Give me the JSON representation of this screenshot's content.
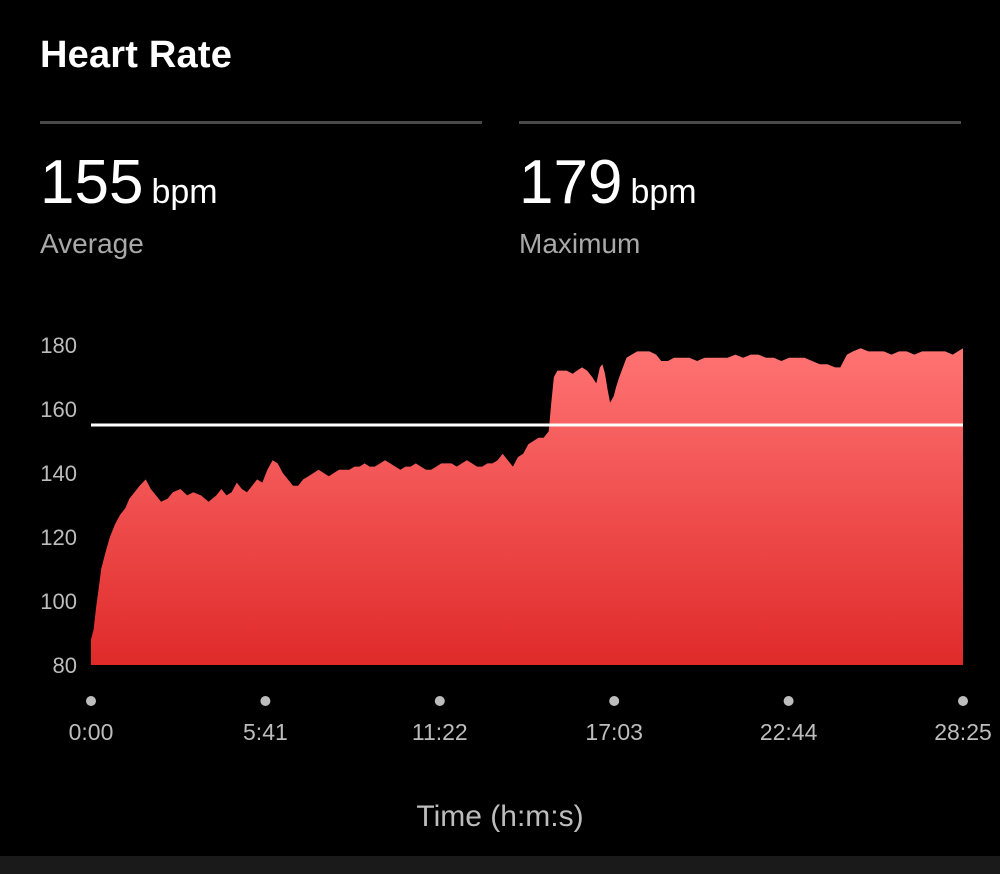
{
  "header": {
    "title": "Heart Rate"
  },
  "stats": {
    "average": {
      "value": "155",
      "unit": "bpm",
      "label": "Average"
    },
    "maximum": {
      "value": "179",
      "unit": "bpm",
      "label": "Maximum"
    }
  },
  "colors": {
    "fill_top": "#ff7373",
    "fill_bottom": "#e02a2a",
    "average_line": "#ffffff",
    "tick_label": "#bdbdbd",
    "divider": "#4a4a4a"
  },
  "chart_data": {
    "type": "area",
    "xlabel": "Time (h:m:s)",
    "ylabel": "",
    "ylim": [
      80,
      180
    ],
    "xlim_seconds": [
      0,
      1705
    ],
    "y_ticks": [
      180,
      160,
      140,
      120,
      100,
      80
    ],
    "x_ticks": [
      {
        "label": "0:00",
        "seconds": 0
      },
      {
        "label": "5:41",
        "seconds": 341
      },
      {
        "label": "11:22",
        "seconds": 682
      },
      {
        "label": "17:03",
        "seconds": 1023
      },
      {
        "label": "22:44",
        "seconds": 1364
      },
      {
        "label": "28:25",
        "seconds": 1705
      }
    ],
    "average_line": 155,
    "series": [
      {
        "x_seconds": [
          0,
          5,
          10,
          15,
          20,
          28,
          37,
          47,
          57,
          67,
          75,
          85,
          95,
          107,
          117,
          127,
          137,
          150,
          160,
          175,
          188,
          200,
          215,
          230,
          245,
          255,
          265,
          275,
          285,
          295,
          305,
          315,
          325,
          335,
          345,
          355,
          365,
          375,
          385,
          395,
          405,
          415,
          425,
          435,
          445,
          455,
          465,
          475,
          485,
          495,
          505,
          515,
          525,
          535,
          545,
          555,
          565,
          575,
          585,
          595,
          605,
          615,
          625,
          635,
          645,
          655,
          665,
          675,
          685,
          695,
          705,
          715,
          725,
          735,
          745,
          755,
          765,
          775,
          785,
          795,
          805,
          815,
          825,
          835,
          845,
          855,
          865,
          875,
          885,
          895,
          900,
          905,
          912,
          920,
          930,
          942,
          950,
          960,
          970,
          980,
          988,
          995,
          1000,
          1005,
          1010,
          1015,
          1022,
          1027,
          1033,
          1040,
          1047,
          1057,
          1068,
          1080,
          1092,
          1105,
          1115,
          1128,
          1140,
          1155,
          1170,
          1185,
          1200,
          1215,
          1230,
          1245,
          1260,
          1275,
          1290,
          1305,
          1320,
          1335,
          1350,
          1365,
          1380,
          1395,
          1410,
          1425,
          1440,
          1455,
          1465,
          1478,
          1490,
          1505,
          1520,
          1535,
          1550,
          1565,
          1580,
          1595,
          1610,
          1625,
          1640,
          1655,
          1670,
          1685,
          1695,
          1705
        ],
        "values": [
          88,
          91,
          98,
          104,
          110,
          115,
          120,
          124,
          127,
          129,
          132,
          134,
          136,
          138,
          135,
          133,
          131,
          132,
          134,
          135,
          133,
          134,
          133,
          131,
          133,
          135,
          133,
          134,
          137,
          135,
          134,
          136,
          138,
          137,
          141,
          144,
          143,
          140,
          138,
          136,
          136,
          138,
          139,
          140,
          141,
          140,
          139,
          140,
          141,
          141,
          141,
          142,
          142,
          143,
          142,
          142,
          143,
          144,
          143,
          142,
          141,
          142,
          142,
          143,
          142,
          141,
          141,
          142,
          143,
          143,
          143,
          142,
          143,
          144,
          143,
          142,
          142,
          143,
          143,
          144,
          146,
          144,
          142,
          145,
          146,
          149,
          150,
          151,
          151,
          153,
          162,
          170,
          172,
          172,
          172,
          171,
          172,
          173,
          172,
          170,
          168,
          173,
          174,
          171,
          166,
          162,
          164,
          167,
          170,
          173,
          176,
          177,
          178,
          178,
          178,
          177,
          175,
          175,
          176,
          176,
          176,
          175,
          176,
          176,
          176,
          176,
          177,
          176,
          177,
          177,
          176,
          176,
          175,
          176,
          176,
          176,
          175,
          174,
          174,
          173,
          173,
          177,
          178,
          179,
          178,
          178,
          178,
          177,
          178,
          178,
          177,
          178,
          178,
          178,
          178,
          177,
          178,
          179
        ]
      }
    ]
  }
}
